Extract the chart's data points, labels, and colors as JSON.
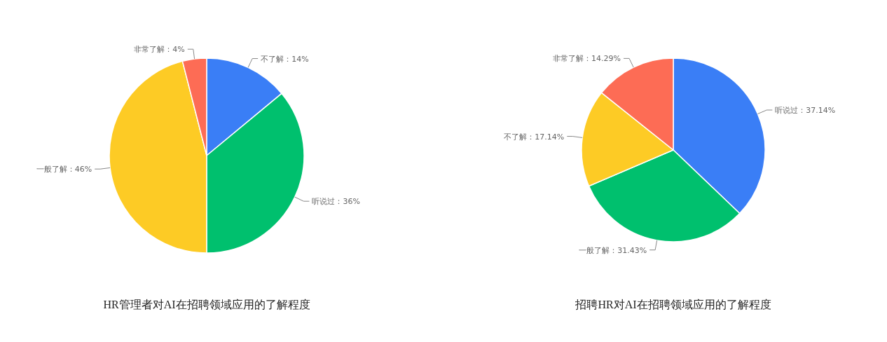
{
  "chart_data": [
    {
      "type": "pie",
      "title": "HR管理者对AI在招聘领域应用的了解程度",
      "categories": [
        "不了解",
        "听说过",
        "一般了解",
        "非常了解"
      ],
      "values": [
        14,
        36,
        46,
        4
      ],
      "value_labels": [
        "14%",
        "36%",
        "46%",
        "4%"
      ],
      "colors": [
        "#3a7ef6",
        "#00c06e",
        "#fdcb25",
        "#fd6c55"
      ]
    },
    {
      "type": "pie",
      "title": "招聘HR对AI在招聘领域应用的了解程度",
      "categories": [
        "听说过",
        "一般了解",
        "不了解",
        "非常了解"
      ],
      "values": [
        37.14,
        31.43,
        17.14,
        14.29
      ],
      "value_labels": [
        "37.14%",
        "31.43%",
        "17.14%",
        "14.29%"
      ],
      "colors": [
        "#3a7ef6",
        "#00c06e",
        "#fdcb25",
        "#fd6c55"
      ]
    }
  ]
}
